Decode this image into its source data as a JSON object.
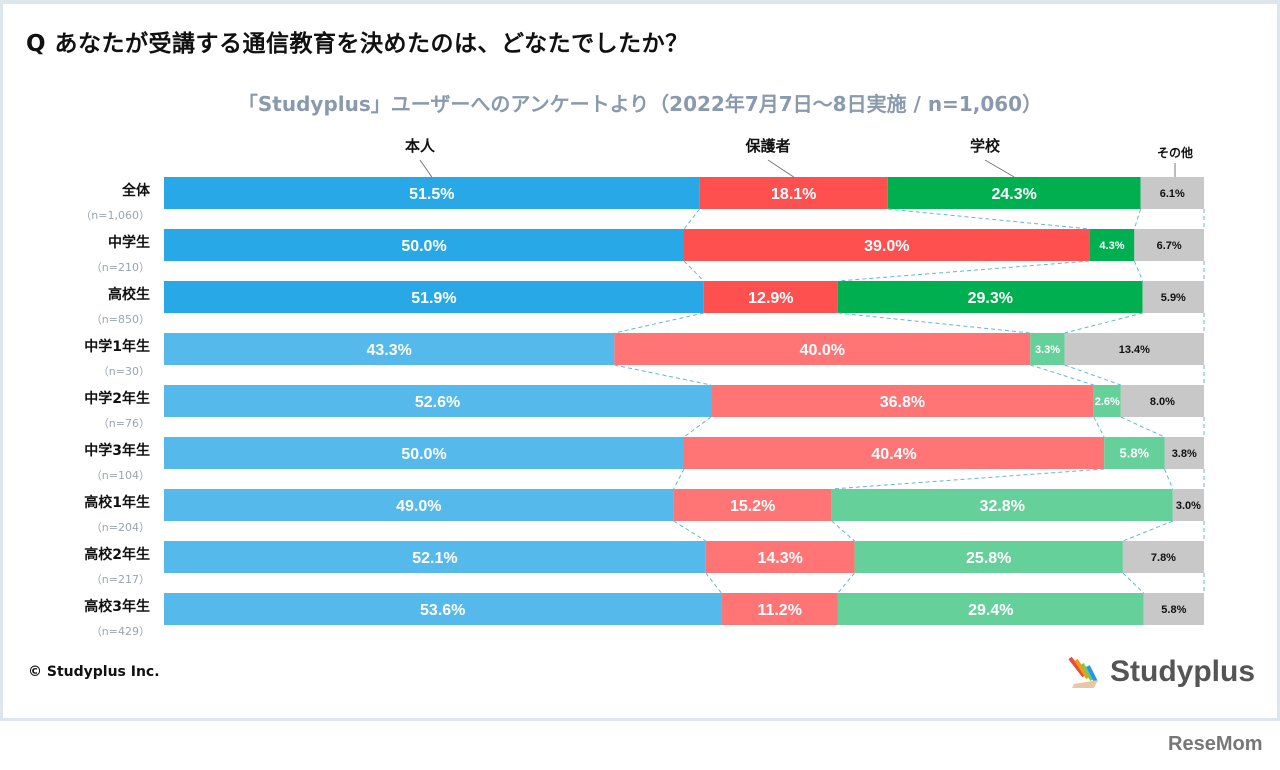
{
  "title": "Q あなたが受講する通信教育を決めたのは、どなたでしたか？",
  "subtitle": "「Studyplus」ユーザーへのアンケートより（2022年7月7日～8日実施 / n=1,060）",
  "copyright": "© Studyplus Inc.",
  "logo_text": "Studyplus",
  "watermark": "ReseMom",
  "chart_data": {
    "type": "bar",
    "orientation": "horizontal-stacked-100",
    "legend_placement": "top",
    "series": [
      {
        "name": "本人",
        "colors": [
          "#29a8e8",
          "#55b9ec"
        ]
      },
      {
        "name": "保護者",
        "colors": [
          "#ff5050",
          "#ff7474"
        ]
      },
      {
        "name": "学校",
        "colors": [
          "#00b050",
          "#66d09a"
        ]
      },
      {
        "name": "その他",
        "colors": [
          "#c8c8c8",
          "#c8c8c8"
        ]
      }
    ],
    "rows": [
      {
        "label": "全体",
        "n": "（n=1,060）",
        "values": [
          51.5,
          18.1,
          24.3,
          6.1
        ]
      },
      {
        "label": "中学生",
        "n": "（n=210）",
        "values": [
          50.0,
          39.0,
          4.3,
          6.7
        ]
      },
      {
        "label": "高校生",
        "n": "（n=850）",
        "values": [
          51.9,
          12.9,
          29.3,
          5.9
        ]
      },
      {
        "label": "中学1年生",
        "n": "（n=30）",
        "values": [
          43.3,
          40.0,
          3.3,
          13.4
        ]
      },
      {
        "label": "中学2年生",
        "n": "（n=76）",
        "values": [
          52.6,
          36.8,
          2.6,
          8.0
        ]
      },
      {
        "label": "中学3年生",
        "n": "（n=104）",
        "values": [
          50.0,
          40.4,
          5.8,
          3.8
        ]
      },
      {
        "label": "高校1年生",
        "n": "（n=204）",
        "values": [
          49.0,
          15.2,
          32.8,
          3.0
        ]
      },
      {
        "label": "高校2年生",
        "n": "（n=217）",
        "values": [
          52.1,
          14.3,
          25.8,
          7.8
        ]
      },
      {
        "label": "高校3年生",
        "n": "（n=429）",
        "values": [
          53.6,
          11.2,
          29.4,
          5.8
        ]
      }
    ],
    "xlim": [
      0,
      100
    ],
    "connector_lines": "dashed"
  }
}
